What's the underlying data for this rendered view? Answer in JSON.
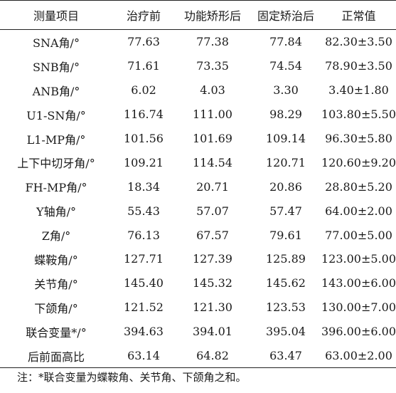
{
  "table": {
    "headers": [
      "测量项目",
      "治疗前",
      "功能矫形后",
      "固定矫治后",
      "正常值"
    ],
    "rows": [
      [
        "SNA角/°",
        "77.63",
        "77.38",
        "77.84",
        "82.30±3.50"
      ],
      [
        "SNB角/°",
        "71.61",
        "73.35",
        "74.54",
        "78.90±3.50"
      ],
      [
        "ANB角/°",
        "6.02",
        "4.03",
        "3.30",
        "3.40±1.80"
      ],
      [
        "U1-SN角/°",
        "116.74",
        "111.00",
        "98.29",
        "103.80±5.50"
      ],
      [
        "L1-MP角/°",
        "101.56",
        "101.69",
        "109.14",
        "96.30±5.80"
      ],
      [
        "上下中切牙角/°",
        "109.21",
        "114.54",
        "120.71",
        "120.60±9.20"
      ],
      [
        "FH-MP角/°",
        "18.34",
        "20.71",
        "20.86",
        "28.80±5.20"
      ],
      [
        "Y轴角/°",
        "55.43",
        "57.07",
        "57.47",
        "64.00±2.00"
      ],
      [
        "Z角/°",
        "76.13",
        "67.57",
        "79.61",
        "77.00±5.00"
      ],
      [
        "蝶鞍角/°",
        "127.71",
        "127.39",
        "125.89",
        "123.00±5.00"
      ],
      [
        "关节角/°",
        "145.40",
        "145.32",
        "145.62",
        "143.00±6.00"
      ],
      [
        "下颌角/°",
        "121.52",
        "121.30",
        "123.53",
        "130.00±7.00"
      ],
      [
        "联合变量*/°",
        "394.63",
        "394.01",
        "395.04",
        "396.00±6.00"
      ],
      [
        "后前面高比",
        "63.14",
        "64.82",
        "63.47",
        "63.00±2.00"
      ]
    ]
  },
  "note": "注：*联合变量为蝶鞍角、关节角、下颌角之和。"
}
